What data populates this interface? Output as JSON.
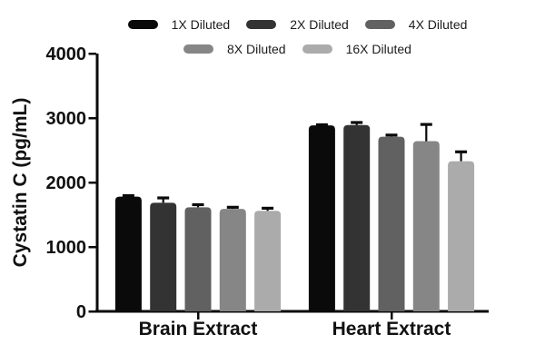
{
  "figure": {
    "background": "#ffffff",
    "axis_color": "#0a0a0a",
    "text_color": "#111111",
    "error_bar_color": "#0a0a0a"
  },
  "chart_data": {
    "type": "bar",
    "title": "",
    "xlabel": "",
    "ylabel": "Cystatin C (pg/mL)",
    "ylim": [
      0,
      4000
    ],
    "yticks": [
      0,
      1000,
      2000,
      3000,
      4000
    ],
    "ytick_labels": [
      "0",
      "1000",
      "2000",
      "3000",
      "4000"
    ],
    "categories": [
      "Brain Extract",
      "Heart Extract"
    ],
    "legend_position": "top",
    "grid": false,
    "error_bars": "upper only",
    "series": [
      {
        "name": "1X Diluted",
        "color": "#0a0a0a",
        "values": [
          1780,
          2885
        ],
        "errors": [
          15,
          10
        ]
      },
      {
        "name": "2X Diluted",
        "color": "#333333",
        "values": [
          1685,
          2890
        ],
        "errors": [
          75,
          40
        ]
      },
      {
        "name": "4X Diluted",
        "color": "#616161",
        "values": [
          1615,
          2710
        ],
        "errors": [
          40,
          25
        ]
      },
      {
        "name": "8X Diluted",
        "color": "#868686",
        "values": [
          1590,
          2640
        ],
        "errors": [
          25,
          260
        ]
      },
      {
        "name": "16X Diluted",
        "color": "#ababab",
        "values": [
          1560,
          2330
        ],
        "errors": [
          40,
          145
        ]
      }
    ],
    "legend_rows": [
      [
        0,
        1,
        2
      ],
      [
        3,
        4
      ]
    ]
  }
}
